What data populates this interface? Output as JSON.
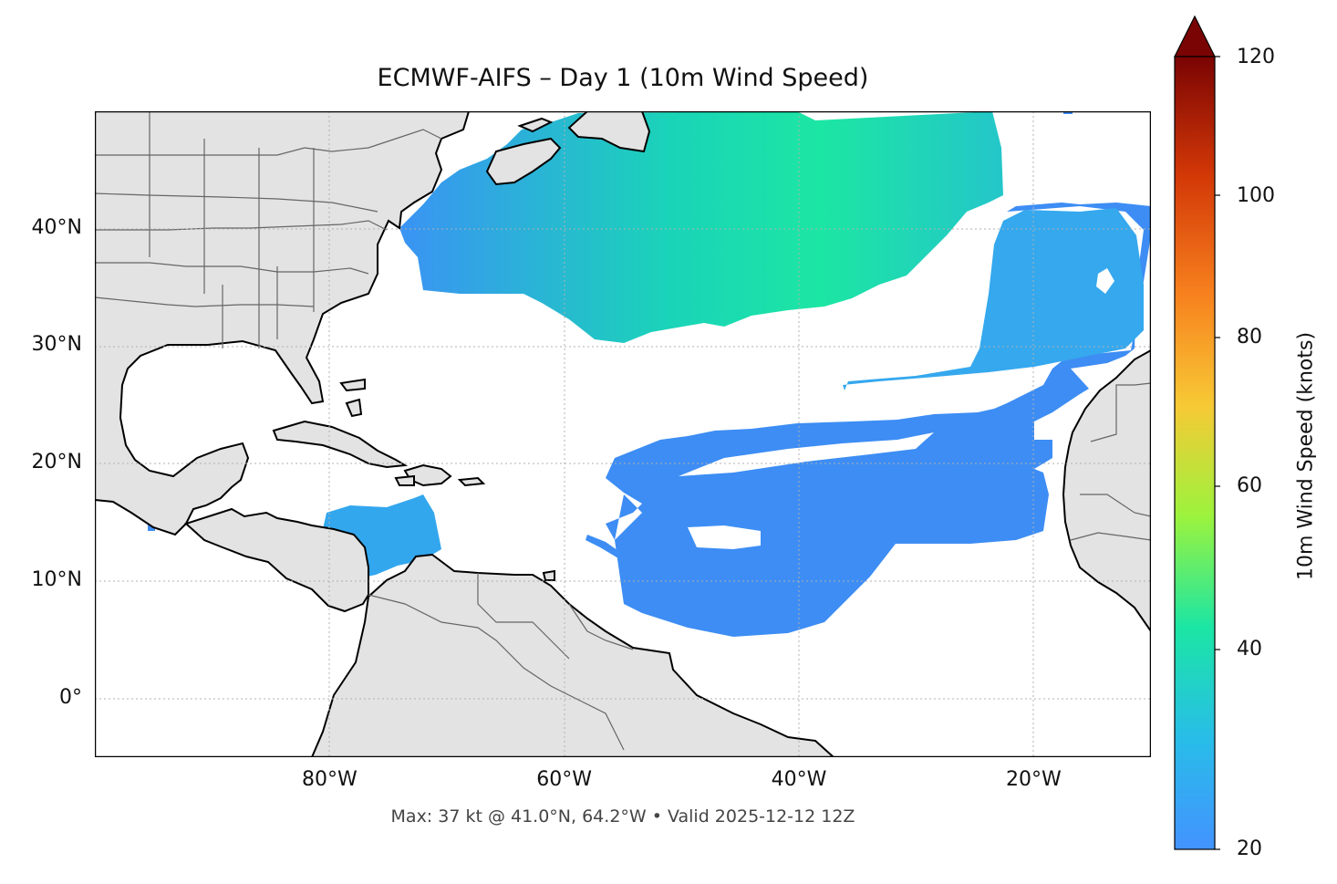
{
  "title": "ECMWF-AIFS – Day 1 (10m Wind Speed)",
  "footer": "Max: 37 kt @ 41.0°N, 64.2°W • Valid 2025-12-12 12Z",
  "map": {
    "extent": {
      "lon": [
        -100,
        -10
      ],
      "lat": [
        -5,
        50
      ]
    },
    "lat_ticks": [
      {
        "value": 40,
        "label": "40°N"
      },
      {
        "value": 30,
        "label": "30°N"
      },
      {
        "value": 20,
        "label": "20°N"
      },
      {
        "value": 10,
        "label": "10°N"
      },
      {
        "value": 0,
        "label": "0°"
      }
    ],
    "lon_ticks": [
      {
        "value": -80,
        "label": "80°W"
      },
      {
        "value": -60,
        "label": "60°W"
      },
      {
        "value": -40,
        "label": "40°W"
      },
      {
        "value": -20,
        "label": "20°W"
      }
    ],
    "colors": {
      "land": "#e3e3e3",
      "coast": "#000000",
      "borders": "#666666",
      "grid": "#b0b0b0"
    }
  },
  "colorbar": {
    "label": "10m Wind Speed (knots)",
    "min": 20,
    "max": 120,
    "ticks": [
      "20",
      "40",
      "60",
      "80",
      "100",
      "120"
    ],
    "colormap": "turbo",
    "stops": [
      "#4393ff",
      "#28bde8",
      "#1be6a4",
      "#9cf33d",
      "#f7c935",
      "#f7811e",
      "#d33807",
      "#7a0403"
    ]
  }
}
